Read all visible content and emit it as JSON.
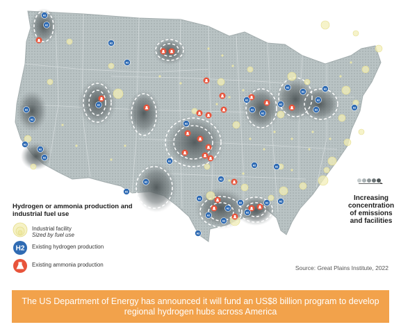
{
  "map": {
    "region": "United States",
    "colors": {
      "land": "#b9c3c4",
      "state_border": "#d6dcdd",
      "hotspot": "#5a6264",
      "hub_outline": "#ffffff",
      "facility": "#f3efb8",
      "h2_marker": "#2f6bb3",
      "ammonia_marker": "#e8543b"
    }
  },
  "legend": {
    "title": "Hydrogen or ammonia production and industrial fuel use",
    "items": [
      {
        "icon": "industrial-facility-icon",
        "label": "Industrial facility",
        "sublabel": "Sized by fuel use"
      },
      {
        "icon": "h2-icon",
        "label": "Existing hydrogen production",
        "glyph": "H2"
      },
      {
        "icon": "ammonia-flask-icon",
        "label": "Existing ammonia production"
      }
    ]
  },
  "concentration": {
    "label": "Increasing concentration of emissions and facilities"
  },
  "source": "Source: Great Plains Institute, 2022",
  "banner": {
    "text": "The US Department of Energy has announced it will fund an US$8 billion program to develop regional hydrogen hubs across America"
  }
}
